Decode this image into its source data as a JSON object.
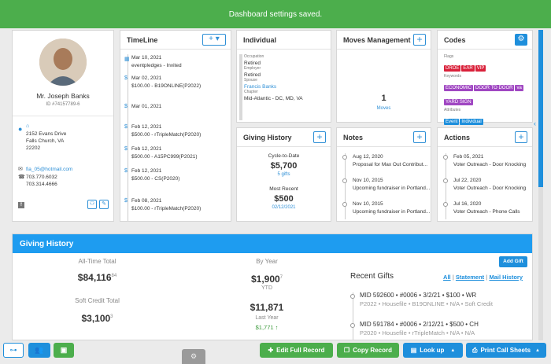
{
  "toast": "Dashboard settings saved.",
  "profile": {
    "name": "Mr. Joseph Banks",
    "id": "ID #74157789-6",
    "address1": "2152 Evans Drive",
    "address2": "Falls Church, VA",
    "zip": "22202",
    "email": "fia_05@hotmail.com",
    "phone1": "703.770.6032",
    "phone2": "703.314.4666"
  },
  "timeline": {
    "title": "TimeLine",
    "items": [
      {
        "date": "Mar 10, 2021",
        "text": "eventpledges - Invited"
      },
      {
        "date": "Mar 02, 2021",
        "text": "$100.00 - B19ONLINE(P2022)"
      },
      {
        "date": "Mar 01, 2021",
        "text": ""
      },
      {
        "date": "Feb 12, 2021",
        "text": "$500.00 - rTripleMatch(P2020)"
      },
      {
        "date": "Feb 12, 2021",
        "text": "$500.00 - A15PC999(P2021)"
      },
      {
        "date": "Feb 12, 2021",
        "text": "$500.00 - CS(P2020)"
      },
      {
        "date": "Feb 08, 2021",
        "text": "$100.00 - rTripleMatch(P2020)"
      }
    ]
  },
  "individual": {
    "title": "Individual",
    "occupation_label": "Occupation",
    "occupation": "Retired",
    "employer_label": "Employer",
    "employer": "Retired",
    "spouse_label": "Spouse",
    "spouse": "Francis Banks",
    "chapter_label": "Chapter",
    "chapter": "Mid-Atlantic - DC, MD, VA"
  },
  "moves": {
    "title": "Moves Management",
    "count": "1",
    "label": "Moves"
  },
  "codes": {
    "title": "Codes",
    "flags_label": "Flags",
    "flags": [
      "DROE",
      "EAR",
      "VIP"
    ],
    "keywords_label": "Keywords",
    "keywords": [
      "ECONOMIC",
      "DOOR TO DOOR",
      "va",
      "YARD SIGN"
    ],
    "attributes_label": "Attributes",
    "attributes": [
      "Event",
      "Individual"
    ]
  },
  "giving_small": {
    "title": "Giving History",
    "ctd_label": "Cycle-to-Date",
    "ctd_value": "$5,700",
    "ctd_gifts": "5 gifts",
    "recent_label": "Most Recent",
    "recent_value": "$500",
    "recent_date": "02/12/2021"
  },
  "notes": {
    "title": "Notes",
    "items": [
      {
        "date": "Aug 12, 2020",
        "text": "Proposal for Max Out Contribut..."
      },
      {
        "date": "Nov 10, 2015",
        "text": "Upcoming fundraiser in Portland..."
      },
      {
        "date": "Nov 10, 2015",
        "text": "Upcoming fundraiser in Portland..."
      }
    ]
  },
  "actions": {
    "title": "Actions",
    "items": [
      {
        "date": "Feb 05, 2021",
        "text": "Voter Outreach - Door Knocking"
      },
      {
        "date": "Jul 22, 2020",
        "text": "Voter Outreach - Door Knocking"
      },
      {
        "date": "Jul 16, 2020",
        "text": "Voter Outreach - Phone Calls"
      }
    ]
  },
  "giving": {
    "title": "Giving History",
    "alltime_label": "All-Time Total",
    "alltime": "$84,116",
    "alltime_sup": "84",
    "soft_label": "Soft Credit Total",
    "soft": "$3,100",
    "soft_sup": "3",
    "byyear_label": "By Year",
    "ytd": "$1,900",
    "ytd_sup": "7",
    "ytd_label": "YTD",
    "lastyear": "$11,871",
    "lastyear_label": "Last Year",
    "change": "$1,771 ↑",
    "add_gift": "Add Gift",
    "recent_title": "Recent Gifts",
    "link_all": "All",
    "link_statement": "Statement",
    "link_mail": "Mail History",
    "gifts": [
      {
        "line1": "MID 592600 • #0006 • 3/2/21 • $100 • WR",
        "line2": "P2022 • Housefile • B19ONLINE • N/A • Soft Credit"
      },
      {
        "line1": "MID 591784 • #0006 • 2/12/21 • $500 • CH",
        "line2": "P2020 • Housefile • rTripleMatch • N/A • N/A"
      }
    ]
  },
  "toolbar": {
    "edit": "Edit Full Record",
    "copy": "Copy Record",
    "lookup": "Look up",
    "print": "Print Call Sheets"
  }
}
